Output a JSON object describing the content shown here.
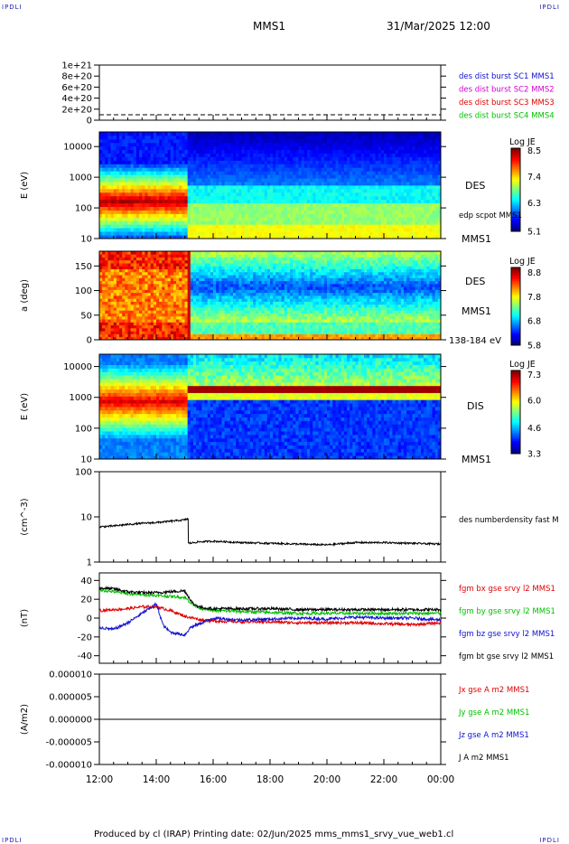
{
  "header": {
    "corner_label": "IPDLI",
    "spacecraft": "MMS1",
    "datetime": "31/Mar/2025 12:00"
  },
  "footer": {
    "text": "Produced by cl (IRAP)   Printing date: 02/Jun/2025   mms_mms1_srvy_vue_web1.cl"
  },
  "colors": {
    "blue": "#1010d0",
    "magenta": "#d000d0",
    "red": "#e00000",
    "green": "#00c000",
    "black": "#000000"
  },
  "chart_data": [
    {
      "id": "burst",
      "type": "line",
      "y_ticks": [
        "1e+21",
        "8e+20",
        "6e+20",
        "4e+20",
        "2e+20",
        "0"
      ],
      "ylim": [
        0,
        1e+21
      ],
      "legend": [
        {
          "label": "des dist burst SC1 MMS1",
          "color": "blue"
        },
        {
          "label": "des dist burst SC2 MMS2",
          "color": "magenta"
        },
        {
          "label": "des dist burst SC3 MMS3",
          "color": "red"
        },
        {
          "label": "des dist burst SC4 MMS4",
          "color": "green"
        }
      ],
      "series": [
        {
          "values": [
            0,
            0
          ]
        }
      ]
    },
    {
      "id": "des_energy",
      "type": "heatmap",
      "ylabel": "E (eV)",
      "y_ticks": [
        "10000",
        "1000",
        "100",
        "10"
      ],
      "y_scale": "log",
      "ylim": [
        10,
        30000
      ],
      "colorbar": {
        "title": "Log JE",
        "ticks": [
          "8.5",
          "7.4",
          "6.3",
          "5.1"
        ],
        "range": [
          5.1,
          8.6
        ]
      },
      "right_labels": [
        "DES",
        "edp scpot MMS1",
        "MMS1"
      ]
    },
    {
      "id": "des_pitch",
      "type": "heatmap",
      "ylabel": "a (deg)",
      "y_ticks": [
        "150",
        "100",
        "50",
        "0"
      ],
      "ylim": [
        0,
        180
      ],
      "colorbar": {
        "title": "Log JE",
        "ticks": [
          "8.8",
          "7.8",
          "6.8",
          "5.8"
        ],
        "range": [
          5.8,
          9.0
        ]
      },
      "right_labels": [
        "DES",
        "MMS1",
        "138-184 eV"
      ]
    },
    {
      "id": "dis_energy",
      "type": "heatmap",
      "ylabel": "E (eV)",
      "y_ticks": [
        "10000",
        "1000",
        "100",
        "10"
      ],
      "y_scale": "log",
      "ylim": [
        10,
        25000
      ],
      "colorbar": {
        "title": "Log JE",
        "ticks": [
          "7.3",
          "6.0",
          "4.6",
          "3.3"
        ],
        "range": [
          3.3,
          7.5
        ]
      },
      "right_labels": [
        "DIS",
        "MMS1"
      ]
    },
    {
      "id": "density",
      "type": "line",
      "ylabel": "(cm^-3)",
      "y_ticks": [
        "100",
        "10",
        "1"
      ],
      "y_scale": "log",
      "ylim": [
        1,
        100
      ],
      "legend": [
        {
          "label": "des numberdensity fast M",
          "color": "black"
        }
      ],
      "series": [
        {
          "color": "black",
          "x_hours": [
            12.0,
            12.5,
            13.0,
            13.5,
            14.0,
            14.5,
            15.0,
            15.12,
            15.13,
            15.5,
            16,
            17,
            18,
            19,
            20,
            21,
            22,
            23,
            24
          ],
          "values": [
            6.0,
            6.3,
            6.8,
            7.2,
            7.5,
            8.0,
            8.6,
            9.2,
            2.6,
            2.8,
            2.9,
            2.7,
            2.6,
            2.5,
            2.4,
            2.7,
            2.7,
            2.6,
            2.5
          ]
        }
      ]
    },
    {
      "id": "bfield",
      "type": "line",
      "ylabel": "(nT)",
      "y_ticks": [
        "40",
        "20",
        "0",
        "-20",
        "-40"
      ],
      "ylim": [
        -48,
        48
      ],
      "legend": [
        {
          "label": "fgm bx gse srvy l2 MMS1",
          "color": "red"
        },
        {
          "label": "fgm by gse srvy l2 MMS1",
          "color": "green"
        },
        {
          "label": "fgm bz gse srvy l2 MMS1",
          "color": "blue"
        },
        {
          "label": "fgm bt gse srvy l2 MMS1",
          "color": "black"
        }
      ],
      "series": [
        {
          "color": "red",
          "x_hours": [
            12.0,
            12.5,
            13.0,
            13.5,
            14.0,
            14.5,
            15.0,
            15.3,
            15.6,
            16,
            17,
            18,
            19,
            20,
            21,
            22,
            23,
            24
          ],
          "values": [
            8,
            9,
            10,
            12,
            12,
            8,
            2,
            0,
            -2,
            -3,
            -4,
            -4,
            -5,
            -5,
            -5,
            -6,
            -7,
            -5
          ]
        },
        {
          "color": "green",
          "x_hours": [
            12.0,
            12.5,
            13.0,
            13.5,
            14.0,
            14.5,
            15.0,
            15.3,
            15.6,
            16,
            17,
            18,
            19,
            20,
            21,
            22,
            23,
            24
          ],
          "values": [
            30,
            28,
            26,
            25,
            24,
            23,
            22,
            14,
            10,
            8,
            7,
            6,
            5,
            5,
            5,
            5,
            5,
            5
          ]
        },
        {
          "color": "blue",
          "x_hours": [
            12.0,
            12.5,
            13.0,
            13.5,
            14.0,
            14.25,
            14.5,
            15.0,
            15.2,
            15.6,
            16,
            17,
            18,
            19,
            20,
            21,
            22,
            23,
            24
          ],
          "values": [
            -10,
            -12,
            -5,
            5,
            15,
            -8,
            -15,
            -18,
            -10,
            -5,
            0,
            -2,
            -1,
            0,
            -1,
            1,
            0,
            0,
            -2
          ]
        },
        {
          "color": "black",
          "x_hours": [
            12.0,
            12.5,
            13.0,
            13.5,
            14.0,
            14.5,
            15.0,
            15.3,
            15.6,
            16,
            17,
            18,
            19,
            20,
            21,
            22,
            23,
            24
          ],
          "values": [
            32,
            31,
            28,
            27,
            27,
            28,
            29,
            15,
            11,
            10,
            10,
            10,
            9,
            9,
            9,
            9,
            9,
            9
          ]
        }
      ]
    },
    {
      "id": "current",
      "type": "line",
      "ylabel": "(A/m2)",
      "y_ticks": [
        "0.000010",
        "0.000005",
        "0.000000",
        "-0.000005",
        "-0.000010"
      ],
      "ylim": [
        -1e-05,
        1e-05
      ],
      "legend": [
        {
          "label": "Jx gse A m2 MMS1",
          "color": "red"
        },
        {
          "label": "Jy gse A m2 MMS1",
          "color": "green"
        },
        {
          "label": "Jz gse A m2 MMS1",
          "color": "blue"
        },
        {
          "label": "J A m2 MMS1",
          "color": "black"
        }
      ],
      "series": [
        {
          "color": "black",
          "x_hours": [
            12,
            24
          ],
          "values": [
            0,
            0
          ]
        }
      ]
    }
  ],
  "x_axis": {
    "range_hours": [
      12,
      24
    ],
    "tick_labels": [
      "12:00",
      "14:00",
      "16:00",
      "18:00",
      "20:00",
      "22:00",
      "00:00"
    ]
  }
}
